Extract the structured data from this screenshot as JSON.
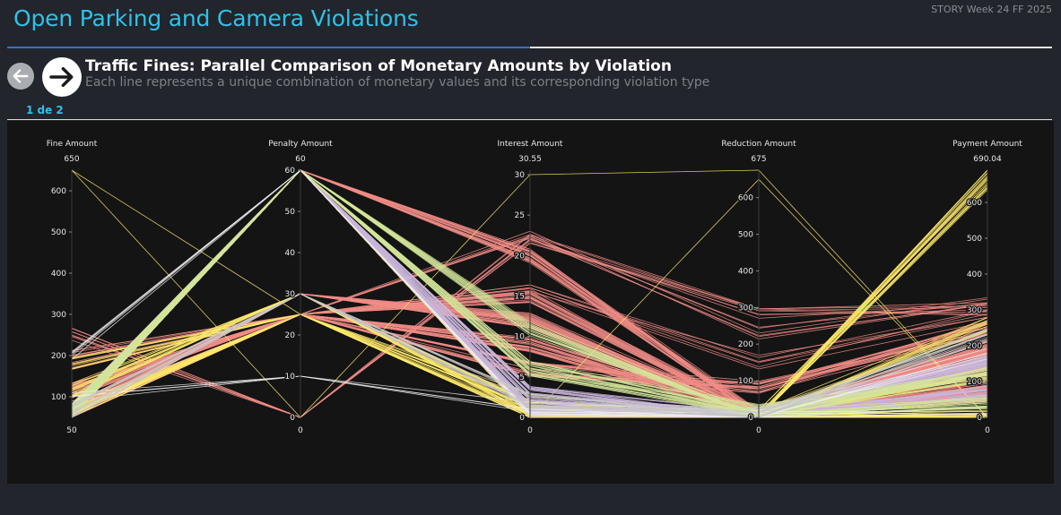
{
  "header": {
    "title": "Open Parking and Camera Violations",
    "story_badge": "STORY Week 24 FF 2025",
    "progress": 0.5
  },
  "slide": {
    "title": "Traffic Fines: Parallel Comparison of Monetary Amounts by Violation",
    "subtitle": "Each line represents a unique combination of monetary values and its corresponding violation type",
    "page_counter": "1 de 2"
  },
  "icons": {
    "back": "arrow-left-icon",
    "next": "arrow-right-icon"
  },
  "chart_data": {
    "type": "parallel_coordinates",
    "dimensions": [
      {
        "name": "Fine Amount",
        "range": [
          50,
          650
        ],
        "range_labels": [
          "50",
          "650"
        ],
        "ticks": [
          100,
          200,
          300,
          400,
          500,
          600
        ]
      },
      {
        "name": "Penalty Amount",
        "range": [
          0,
          60
        ],
        "range_labels": [
          "0",
          "60"
        ],
        "ticks": [
          0,
          10,
          20,
          30,
          40,
          50,
          60
        ]
      },
      {
        "name": "Interest Amount",
        "range": [
          0,
          30.55
        ],
        "range_labels": [
          "0",
          "30.55"
        ],
        "ticks": [
          0,
          5,
          10,
          15,
          20,
          25,
          30
        ]
      },
      {
        "name": "Reduction Amount",
        "range": [
          0,
          675
        ],
        "range_labels": [
          "0",
          "675"
        ],
        "ticks": [
          0,
          100,
          200,
          300,
          400,
          500,
          600
        ]
      },
      {
        "name": "Payment Amount",
        "range": [
          0,
          690.04
        ],
        "range_labels": [
          "0",
          "690.04"
        ],
        "ticks": [
          0,
          100,
          200,
          300,
          400,
          500,
          600
        ]
      }
    ],
    "colors": {
      "pink": "#f08c86",
      "yellow": "#fde96a",
      "lavender": "#c9b6db",
      "lightgreen": "#d4e59a",
      "white": "#f0f0f0",
      "grey": "#c8c8c8"
    },
    "lines": [
      {
        "values": [
          65,
          60,
          0.3,
          0,
          65
        ],
        "color": "pink",
        "count": 60
      },
      {
        "values": [
          65,
          30,
          12,
          0,
          140
        ],
        "color": "pink",
        "count": 35
      },
      {
        "values": [
          115,
          25,
          9,
          10,
          170
        ],
        "color": "pink",
        "count": 30
      },
      {
        "values": [
          65,
          60,
          20,
          0,
          200
        ],
        "color": "pink",
        "count": 25
      },
      {
        "values": [
          65,
          25,
          15,
          0,
          100
        ],
        "color": "pink",
        "count": 20
      },
      {
        "values": [
          65,
          25,
          6,
          80,
          250
        ],
        "color": "pink",
        "count": 20
      },
      {
        "values": [
          250,
          0,
          22,
          280,
          300
        ],
        "color": "pink",
        "count": 8
      },
      {
        "values": [
          200,
          25,
          23,
          230,
          330
        ],
        "color": "pink",
        "count": 6
      },
      {
        "values": [
          180,
          25,
          16,
          150,
          280
        ],
        "color": "pink",
        "count": 6
      },
      {
        "values": [
          65,
          60,
          0.5,
          0,
          0
        ],
        "color": "yellow",
        "count": 20
      },
      {
        "values": [
          115,
          30,
          1,
          0,
          260
        ],
        "color": "yellow",
        "count": 15
      },
      {
        "values": [
          65,
          25,
          0,
          0,
          120
        ],
        "color": "yellow",
        "count": 15
      },
      {
        "values": [
          65,
          25,
          2,
          0,
          650
        ],
        "color": "yellow",
        "count": 12
      },
      {
        "values": [
          180,
          25,
          0.5,
          0,
          690
        ],
        "color": "yellow",
        "count": 10
      },
      {
        "values": [
          650,
          0,
          30,
          675,
          0
        ],
        "color": "yellow",
        "count": 1
      },
      {
        "values": [
          650,
          25,
          0,
          650,
          0
        ],
        "color": "yellow",
        "count": 1
      },
      {
        "values": [
          65,
          60,
          1,
          10,
          150
        ],
        "color": "lavender",
        "count": 35
      },
      {
        "values": [
          65,
          60,
          3,
          0,
          70
        ],
        "color": "lavender",
        "count": 25
      },
      {
        "values": [
          65,
          60,
          6,
          20,
          120
        ],
        "color": "lightgreen",
        "count": 25
      },
      {
        "values": [
          65,
          60,
          11,
          0,
          40
        ],
        "color": "lightgreen",
        "count": 20
      },
      {
        "values": [
          100,
          10,
          1,
          0,
          10
        ],
        "color": "white",
        "count": 4
      },
      {
        "values": [
          200,
          60,
          0.5,
          0,
          180
        ],
        "color": "white",
        "count": 5
      },
      {
        "values": [
          65,
          30,
          2,
          0,
          230
        ],
        "color": "grey",
        "count": 15
      }
    ]
  }
}
